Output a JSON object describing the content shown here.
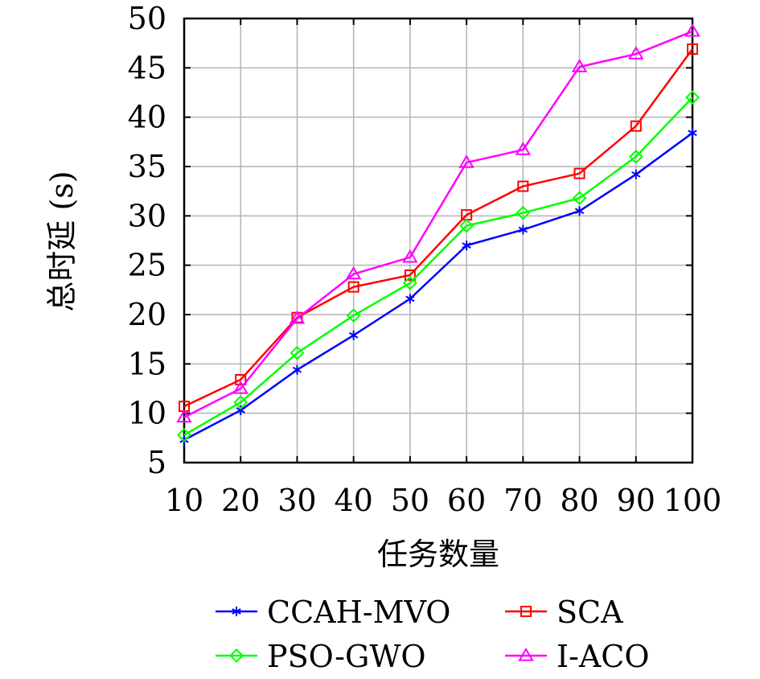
{
  "chart_data": {
    "type": "line",
    "xlabel": "任务数量",
    "ylabel": "总时延 (s)",
    "x": [
      10,
      20,
      30,
      40,
      50,
      60,
      70,
      80,
      90,
      100
    ],
    "xlim": [
      10,
      100
    ],
    "ylim": [
      5,
      50
    ],
    "yticks": [
      5,
      10,
      15,
      20,
      25,
      30,
      35,
      40,
      45,
      50
    ],
    "grid": true,
    "legend_position": "bottom",
    "series": [
      {
        "name": "CCAH-MVO",
        "color": "#0000ff",
        "marker": "star",
        "values": [
          7.3,
          10.3,
          14.4,
          17.9,
          21.6,
          27.0,
          28.6,
          30.5,
          34.2,
          38.4
        ]
      },
      {
        "name": "SCA",
        "color": "#ff0000",
        "marker": "square",
        "values": [
          10.7,
          13.4,
          19.7,
          22.8,
          24.0,
          30.1,
          33.0,
          34.3,
          39.1,
          46.9
        ]
      },
      {
        "name": "PSO-GWO",
        "color": "#00ff00",
        "marker": "diamond",
        "values": [
          7.8,
          11.1,
          16.1,
          19.9,
          23.2,
          29.0,
          30.3,
          31.8,
          36.0,
          42.0
        ]
      },
      {
        "name": "I-ACO",
        "color": "#ff00ff",
        "marker": "triangle",
        "values": [
          9.6,
          12.5,
          19.6,
          24.1,
          25.8,
          35.4,
          36.7,
          45.1,
          46.4,
          48.7
        ]
      }
    ]
  }
}
